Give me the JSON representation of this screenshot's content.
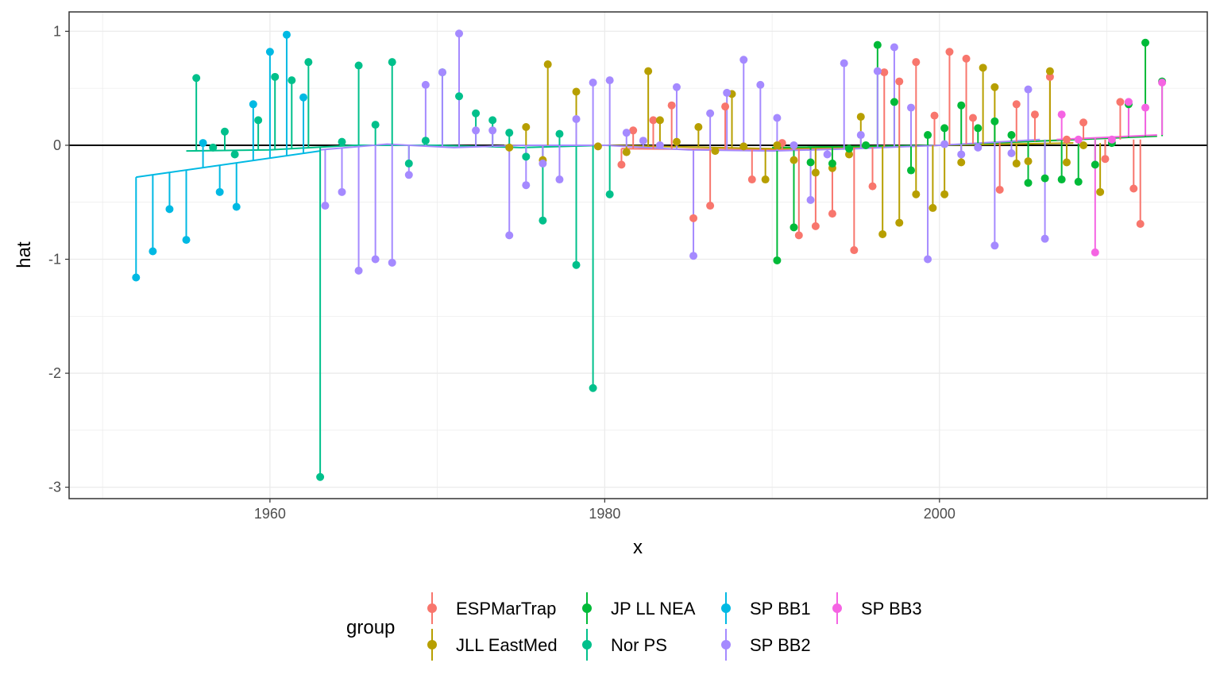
{
  "chart_data": {
    "type": "scatter",
    "style": "lollipop residuals with per-series smoothed trend line",
    "xlabel": "x",
    "ylabel": "hat",
    "xlim": [
      1948,
      2016
    ],
    "ylim": [
      -3.1,
      1.17
    ],
    "x_ticks": [
      1960,
      1980,
      2000
    ],
    "x_tick_labels": [
      "1960",
      "1980",
      "2000"
    ],
    "y_ticks": [
      -3,
      -2,
      -1,
      0,
      1
    ],
    "y_tick_labels": [
      "-3",
      "-2",
      "-1",
      "0",
      "1"
    ],
    "grid": true,
    "reference_line": 0,
    "legend_position": "bottom",
    "legend_title": "group",
    "series": [
      {
        "name": "ESPMarTrap",
        "color": "#F8766D",
        "trend": [
          [
            1981,
            -0.03
          ],
          [
            1990,
            -0.04
          ],
          [
            2000,
            0.0
          ],
          [
            2008,
            0.05
          ]
        ],
        "points": [
          [
            1981.0,
            -0.17
          ],
          [
            1981.7,
            0.13
          ],
          [
            1982.9,
            0.22
          ],
          [
            1984.0,
            0.35
          ],
          [
            1985.3,
            -0.64
          ],
          [
            1986.3,
            -0.53
          ],
          [
            1987.2,
            0.34
          ],
          [
            1988.8,
            -0.3
          ],
          [
            1990.6,
            0.02
          ],
          [
            1991.6,
            -0.79
          ],
          [
            1992.6,
            -0.71
          ],
          [
            1993.6,
            -0.6
          ],
          [
            1994.9,
            -0.92
          ],
          [
            1996.0,
            -0.36
          ],
          [
            1996.7,
            0.64
          ],
          [
            1997.6,
            0.56
          ],
          [
            1998.6,
            0.73
          ],
          [
            1999.7,
            0.26
          ],
          [
            2000.6,
            0.82
          ],
          [
            2001.6,
            0.76
          ],
          [
            2002.0,
            0.24
          ],
          [
            2003.6,
            -0.39
          ],
          [
            2004.6,
            0.36
          ],
          [
            2005.7,
            0.27
          ],
          [
            2006.6,
            0.6
          ],
          [
            2007.6,
            0.05
          ],
          [
            2008.6,
            0.2
          ],
          [
            2009.9,
            -0.12
          ],
          [
            2010.8,
            0.38
          ],
          [
            2011.6,
            -0.38
          ],
          [
            2012.0,
            -0.69
          ]
        ]
      },
      {
        "name": "JLL EastMed",
        "color": "#B79F00",
        "trend": [
          [
            1974,
            0.0
          ],
          [
            1980,
            0.0
          ],
          [
            1990,
            -0.03
          ],
          [
            2000,
            0.0
          ],
          [
            2008,
            0.02
          ]
        ],
        "points": [
          [
            1974.3,
            -0.02
          ],
          [
            1975.3,
            0.16
          ],
          [
            1976.6,
            0.71
          ],
          [
            1976.3,
            -0.13
          ],
          [
            1978.3,
            0.47
          ],
          [
            1979.6,
            -0.01
          ],
          [
            1981.3,
            -0.06
          ],
          [
            1982.6,
            0.65
          ],
          [
            1983.3,
            0.22
          ],
          [
            1984.3,
            0.03
          ],
          [
            1985.6,
            0.16
          ],
          [
            1986.6,
            -0.05
          ],
          [
            1987.6,
            0.45
          ],
          [
            1988.3,
            -0.01
          ],
          [
            1989.6,
            -0.3
          ],
          [
            1990.3,
            0.0
          ],
          [
            1991.3,
            -0.13
          ],
          [
            1992.6,
            -0.24
          ],
          [
            1993.6,
            -0.2
          ],
          [
            1994.6,
            -0.08
          ],
          [
            1995.3,
            0.25
          ],
          [
            1996.6,
            -0.78
          ],
          [
            1997.6,
            -0.68
          ],
          [
            1998.6,
            -0.43
          ],
          [
            1999.6,
            -0.55
          ],
          [
            2000.3,
            -0.43
          ],
          [
            2001.3,
            -0.15
          ],
          [
            2002.6,
            0.68
          ],
          [
            2003.3,
            0.51
          ],
          [
            2004.6,
            -0.16
          ],
          [
            2005.3,
            -0.14
          ],
          [
            2006.6,
            0.65
          ],
          [
            2007.6,
            -0.15
          ],
          [
            2008.6,
            0.0
          ],
          [
            2009.6,
            -0.41
          ]
        ]
      },
      {
        "name": "JP LL NEA",
        "color": "#00BA38",
        "trend": [
          [
            1990,
            -0.02
          ],
          [
            2000,
            0.0
          ],
          [
            2013,
            0.08
          ]
        ],
        "points": [
          [
            1990.3,
            -1.01
          ],
          [
            1991.3,
            -0.72
          ],
          [
            1992.3,
            -0.15
          ],
          [
            1993.6,
            -0.16
          ],
          [
            1994.6,
            -0.03
          ],
          [
            1995.6,
            0.0
          ],
          [
            1996.3,
            0.88
          ],
          [
            1997.3,
            0.38
          ],
          [
            1998.3,
            -0.22
          ],
          [
            1999.3,
            0.09
          ],
          [
            2000.3,
            0.15
          ],
          [
            2001.3,
            0.35
          ],
          [
            2002.3,
            0.15
          ],
          [
            2003.3,
            0.21
          ],
          [
            2004.3,
            0.09
          ],
          [
            2005.3,
            -0.33
          ],
          [
            2006.3,
            -0.29
          ],
          [
            2007.3,
            -0.3
          ],
          [
            2008.3,
            -0.32
          ],
          [
            2009.3,
            -0.17
          ],
          [
            2010.3,
            0.02
          ],
          [
            2011.3,
            0.36
          ],
          [
            2012.3,
            0.9
          ],
          [
            2013.3,
            0.56
          ]
        ]
      },
      {
        "name": "Nor PS",
        "color": "#00C08B",
        "trend": [
          [
            1955,
            -0.05
          ],
          [
            1960,
            -0.04
          ],
          [
            1965,
            0.0
          ],
          [
            1970,
            0.0
          ],
          [
            1975,
            -0.02
          ],
          [
            1980,
            0.0
          ]
        ],
        "points": [
          [
            1955.6,
            0.59
          ],
          [
            1956.6,
            -0.02
          ],
          [
            1957.3,
            0.12
          ],
          [
            1957.9,
            -0.08
          ],
          [
            1959.3,
            0.22
          ],
          [
            1960.3,
            0.6
          ],
          [
            1961.3,
            0.57
          ],
          [
            1962.3,
            0.73
          ],
          [
            1963.0,
            -2.91
          ],
          [
            1964.3,
            0.03
          ],
          [
            1965.3,
            0.7
          ],
          [
            1966.3,
            0.18
          ],
          [
            1967.3,
            0.73
          ],
          [
            1968.3,
            -0.16
          ],
          [
            1969.3,
            0.04
          ],
          [
            1970.3,
            0.64
          ],
          [
            1971.3,
            0.43
          ],
          [
            1972.3,
            0.28
          ],
          [
            1973.3,
            0.22
          ],
          [
            1974.3,
            0.11
          ],
          [
            1975.3,
            -0.1
          ],
          [
            1976.3,
            -0.66
          ],
          [
            1977.3,
            0.1
          ],
          [
            1978.3,
            -1.05
          ],
          [
            1979.3,
            -2.13
          ],
          [
            1980.3,
            -0.43
          ]
        ]
      },
      {
        "name": "SP BB1",
        "color": "#00B9E3",
        "trend": [
          [
            1952,
            -0.28
          ],
          [
            1963,
            -0.05
          ]
        ],
        "points": [
          [
            1952.0,
            -1.16
          ],
          [
            1953.0,
            -0.93
          ],
          [
            1954.0,
            -0.56
          ],
          [
            1955.0,
            -0.83
          ],
          [
            1956.0,
            0.02
          ],
          [
            1957.0,
            -0.41
          ],
          [
            1958.0,
            -0.54
          ],
          [
            1959.0,
            0.36
          ],
          [
            1960.0,
            0.82
          ],
          [
            1961.0,
            0.97
          ],
          [
            1962.0,
            0.42
          ]
        ]
      },
      {
        "name": "SP BB2",
        "color": "#A58AFF",
        "trend": [
          [
            1963,
            -0.04
          ],
          [
            1967,
            0.01
          ],
          [
            1971,
            -0.02
          ],
          [
            1975,
            0.0
          ],
          [
            1980,
            0.0
          ],
          [
            1985,
            -0.04
          ],
          [
            1990,
            -0.05
          ],
          [
            1995,
            -0.03
          ],
          [
            2000,
            0.0
          ],
          [
            2006,
            0.05
          ]
        ],
        "points": [
          [
            1963.3,
            -0.53
          ],
          [
            1964.3,
            -0.41
          ],
          [
            1965.3,
            -1.1
          ],
          [
            1966.3,
            -1.0
          ],
          [
            1967.3,
            -1.03
          ],
          [
            1968.3,
            -0.26
          ],
          [
            1969.3,
            0.53
          ],
          [
            1970.3,
            0.64
          ],
          [
            1971.3,
            0.98
          ],
          [
            1972.3,
            0.13
          ],
          [
            1973.3,
            0.13
          ],
          [
            1974.3,
            -0.79
          ],
          [
            1975.3,
            -0.35
          ],
          [
            1976.3,
            -0.16
          ],
          [
            1977.3,
            -0.3
          ],
          [
            1978.3,
            0.23
          ],
          [
            1979.3,
            0.55
          ],
          [
            1980.3,
            0.57
          ],
          [
            1981.3,
            0.11
          ],
          [
            1982.3,
            0.04
          ],
          [
            1983.3,
            0.0
          ],
          [
            1984.3,
            0.51
          ],
          [
            1985.3,
            -0.97
          ],
          [
            1986.3,
            0.28
          ],
          [
            1987.3,
            0.46
          ],
          [
            1988.3,
            0.75
          ],
          [
            1989.3,
            0.53
          ],
          [
            1990.3,
            0.24
          ],
          [
            1991.3,
            0.0
          ],
          [
            1992.3,
            -0.48
          ],
          [
            1993.3,
            -0.08
          ],
          [
            1994.3,
            0.72
          ],
          [
            1995.3,
            0.09
          ],
          [
            1996.3,
            0.65
          ],
          [
            1997.3,
            0.86
          ],
          [
            1998.3,
            0.33
          ],
          [
            1999.3,
            -1.0
          ],
          [
            2000.3,
            0.01
          ],
          [
            2001.3,
            -0.08
          ],
          [
            2002.3,
            -0.02
          ],
          [
            2003.3,
            -0.88
          ],
          [
            2004.3,
            -0.07
          ],
          [
            2005.3,
            0.49
          ],
          [
            2006.3,
            -0.82
          ]
        ]
      },
      {
        "name": "SP BB3",
        "color": "#F564E3",
        "trend": [
          [
            2007,
            0.05
          ],
          [
            2013,
            0.09
          ]
        ],
        "points": [
          [
            2007.3,
            0.27
          ],
          [
            2008.3,
            0.05
          ],
          [
            2009.3,
            -0.94
          ],
          [
            2010.3,
            0.05
          ],
          [
            2011.3,
            0.38
          ],
          [
            2012.3,
            0.33
          ],
          [
            2013.3,
            0.55
          ]
        ]
      }
    ]
  }
}
